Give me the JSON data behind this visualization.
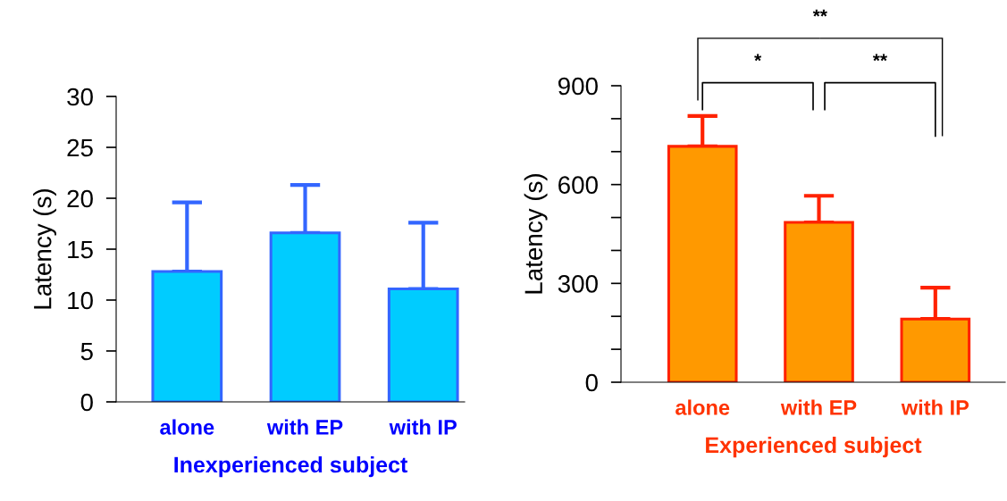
{
  "chart_data": [
    {
      "type": "bar",
      "xlabel": "Inexperienced subject",
      "ylabel": "Latency (s)",
      "categories": [
        "alone",
        "with EP",
        "with IP"
      ],
      "values": [
        12.8,
        16.6,
        11.1
      ],
      "errors": [
        [
          12.8,
          19.6
        ],
        [
          16.6,
          21.3
        ],
        [
          11.1,
          17.6
        ]
      ],
      "color": "#00ccff",
      "ylim": [
        0,
        30
      ],
      "yticks": [
        0,
        5,
        10,
        15,
        20,
        25,
        30
      ],
      "grid": false,
      "legend": false
    },
    {
      "type": "bar",
      "xlabel": "Experienced subject",
      "ylabel": "Latency (s)",
      "categories": [
        "alone",
        "with EP",
        "with IP"
      ],
      "values": [
        716,
        485,
        192
      ],
      "errors": [
        [
          716,
          808
        ],
        [
          485,
          566
        ],
        [
          192,
          287
        ]
      ],
      "color": "#ff9900",
      "ylim": [
        0,
        900
      ],
      "yticks": [
        0,
        {
          "value": 100,
          "label": null
        },
        {
          "value": 200,
          "label": null
        },
        300,
        {
          "value": 400,
          "label": null
        },
        {
          "value": 500,
          "label": null
        },
        600,
        {
          "value": 700,
          "label": null
        },
        {
          "value": 800,
          "label": null
        },
        900
      ],
      "grid": false,
      "legend": false,
      "annotations": [
        "*",
        "**",
        "**"
      ]
    }
  ]
}
